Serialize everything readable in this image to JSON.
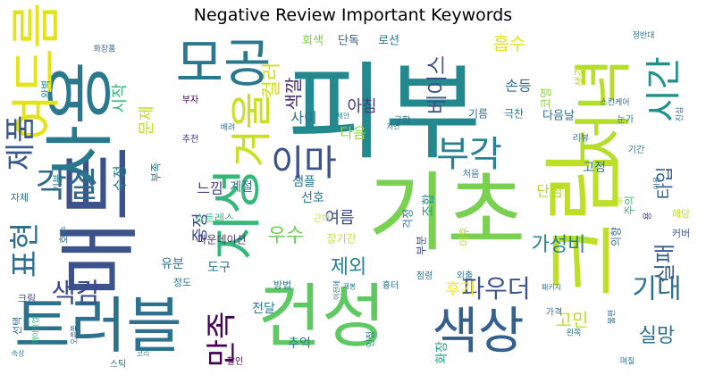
{
  "chart_data": {
    "type": "wordcloud",
    "title": "Negative Review Important Keywords",
    "xlabel": "",
    "ylabel": "",
    "colormap": "viridis",
    "background": "#ffffff",
    "words": [
      {
        "text": "피부",
        "weight": 100,
        "color": "#23898e"
      },
      {
        "text": "매트",
        "weight": 96,
        "color": "#3b528b"
      },
      {
        "text": "기초",
        "weight": 90,
        "color": "#7ad151"
      },
      {
        "text": "사용",
        "weight": 86,
        "color": "#2a788e"
      },
      {
        "text": "건성",
        "weight": 82,
        "color": "#5ec962"
      },
      {
        "text": "크림",
        "weight": 80,
        "color": "#bddf26"
      },
      {
        "text": "트러블",
        "weight": 74,
        "color": "#2c728e"
      },
      {
        "text": "저녁",
        "weight": 72,
        "color": "#b5de2b"
      },
      {
        "text": "지성",
        "weight": 62,
        "color": "#35b779"
      },
      {
        "text": "모공",
        "weight": 58,
        "color": "#2a788e"
      },
      {
        "text": "여드름",
        "weight": 56,
        "color": "#e3e418"
      },
      {
        "text": "색상",
        "weight": 58,
        "color": "#355f8d"
      },
      {
        "text": "겨울",
        "weight": 54,
        "color": "#c8e020"
      },
      {
        "text": "이마",
        "weight": 46,
        "color": "#3b528b"
      },
      {
        "text": "부각",
        "weight": 44,
        "color": "#26828e"
      },
      {
        "text": "각질",
        "weight": 44,
        "color": "#31688e"
      },
      {
        "text": "표현",
        "weight": 42,
        "color": "#2e6e8e"
      },
      {
        "text": "제품",
        "weight": 40,
        "color": "#38588c"
      },
      {
        "text": "시간",
        "weight": 40,
        "color": "#21918c"
      },
      {
        "text": "화장",
        "weight": 38,
        "color": "#1fa187"
      },
      {
        "text": "만족",
        "weight": 36,
        "color": "#440154"
      },
      {
        "text": "색감",
        "weight": 34,
        "color": "#3e4a89"
      },
      {
        "text": "기대",
        "weight": 32,
        "color": "#2c728e"
      },
      {
        "text": "파우더",
        "weight": 30,
        "color": "#3b528b"
      },
      {
        "text": "가성비",
        "weight": 26,
        "color": "#26828e"
      },
      {
        "text": "실패",
        "weight": 26,
        "color": "#355f8d"
      },
      {
        "text": "실망",
        "weight": 26,
        "color": "#2d708e"
      },
      {
        "text": "고민",
        "weight": 26,
        "color": "#bddf26"
      },
      {
        "text": "우수",
        "weight": 26,
        "color": "#6ece58"
      },
      {
        "text": "베이스",
        "weight": 24,
        "color": "#3b528b"
      },
      {
        "text": "컬러",
        "weight": 24,
        "color": "#d0e11c"
      },
      {
        "text": "아침",
        "weight": 22,
        "color": "#443983"
      },
      {
        "text": "색깔",
        "weight": 24,
        "color": "#472d7b"
      },
      {
        "text": "흡수",
        "weight": 22,
        "color": "#e5e419"
      },
      {
        "text": "타입",
        "weight": 22,
        "color": "#34618d"
      },
      {
        "text": "후기",
        "weight": 22,
        "color": "#fde725"
      },
      {
        "text": "제외",
        "weight": 22,
        "color": "#26828e"
      },
      {
        "text": "여름",
        "weight": 20,
        "color": "#3e4989"
      },
      {
        "text": "문제",
        "weight": 18,
        "color": "#bddf26"
      },
      {
        "text": "시작",
        "weight": 18,
        "color": "#35b779"
      },
      {
        "text": "이후",
        "weight": 18,
        "color": "#b5de2b"
      },
      {
        "text": "다음",
        "weight": 16,
        "color": "#8fd744"
      },
      {
        "text": "단점",
        "weight": 16,
        "color": "#addc30"
      },
      {
        "text": "손등",
        "weight": 16,
        "color": "#31688e"
      },
      {
        "text": "느낌",
        "weight": 16,
        "color": "#433e85"
      },
      {
        "text": "사이",
        "weight": 16,
        "color": "#2e6e8e"
      },
      {
        "text": "수정",
        "weight": 16,
        "color": "#26828e"
      },
      {
        "text": "중정",
        "weight": 16,
        "color": "#3e4a89"
      },
      {
        "text": "계절",
        "weight": 15,
        "color": "#2c728e"
      },
      {
        "text": "샘플",
        "weight": 15,
        "color": "#2a788e"
      },
      {
        "text": "선호",
        "weight": 15,
        "color": "#2a788e"
      },
      {
        "text": "유분",
        "weight": 14,
        "color": "#2c728e"
      },
      {
        "text": "도구",
        "weight": 14,
        "color": "#2a788e"
      },
      {
        "text": "고정",
        "weight": 14,
        "color": "#2c728e"
      },
      {
        "text": "조합",
        "weight": 14,
        "color": "#21918c"
      },
      {
        "text": "추억",
        "weight": 14,
        "color": "#2a788e"
      },
      {
        "text": "전달",
        "weight": 14,
        "color": "#2a788e"
      },
      {
        "text": "회색",
        "weight": 14,
        "color": "#7ad151"
      },
      {
        "text": "단독",
        "weight": 14,
        "color": "#38588c"
      },
      {
        "text": "로션",
        "weight": 14,
        "color": "#2a788e"
      },
      {
        "text": "코열",
        "weight": 13,
        "color": "#8fd744"
      },
      {
        "text": "생각",
        "weight": 13,
        "color": "#bddf26"
      },
      {
        "text": "다음날",
        "weight": 13,
        "color": "#31688e"
      },
      {
        "text": "극찬",
        "weight": 12,
        "color": "#2a788e"
      },
      {
        "text": "기름",
        "weight": 12,
        "color": "#2c728e"
      },
      {
        "text": "부족",
        "weight": 12,
        "color": "#2a788e"
      },
      {
        "text": "스트레스",
        "weight": 12,
        "color": "#35b779"
      },
      {
        "text": "파운데이션",
        "weight": 12,
        "color": "#46327e"
      },
      {
        "text": "장기간",
        "weight": 12,
        "color": "#bddf26"
      },
      {
        "text": "걱정",
        "weight": 12,
        "color": "#2c728e"
      },
      {
        "text": "부분",
        "weight": 12,
        "color": "#3e4989"
      },
      {
        "text": "의향",
        "weight": 12,
        "color": "#31688e"
      },
      {
        "text": "주의",
        "weight": 12,
        "color": "#35b779"
      },
      {
        "text": "해당",
        "weight": 11,
        "color": "#bddf26"
      },
      {
        "text": "커버",
        "weight": 11,
        "color": "#3b528b"
      },
      {
        "text": "용",
        "weight": 11,
        "color": "#443983"
      },
      {
        "text": "방법",
        "weight": 11,
        "color": "#2a788e"
      },
      {
        "text": "정도",
        "weight": 11,
        "color": "#2c728e"
      },
      {
        "text": "크림",
        "weight": 11,
        "color": "#3b528b"
      },
      {
        "text": "선택",
        "weight": 11,
        "color": "#31688e"
      },
      {
        "text": "자체",
        "weight": 11,
        "color": "#2c728e"
      },
      {
        "text": "기분",
        "weight": 11,
        "color": "#2a788e"
      },
      {
        "text": "완벽",
        "weight": 11,
        "color": "#21918c"
      },
      {
        "text": "호수",
        "weight": 11,
        "color": "#2c728e"
      },
      {
        "text": "가격",
        "weight": 10,
        "color": "#2c728e"
      },
      {
        "text": "인정",
        "weight": 10,
        "color": "#2a788e"
      },
      {
        "text": "점령",
        "weight": 10,
        "color": "#2c728e"
      },
      {
        "text": "외출",
        "weight": 10,
        "color": "#2c728e"
      },
      {
        "text": "흉터",
        "weight": 10,
        "color": "#2c728e"
      },
      {
        "text": "할인",
        "weight": 10,
        "color": "#440154"
      },
      {
        "text": "스틱",
        "weight": 10,
        "color": "#2a788e"
      },
      {
        "text": "근대",
        "weight": 10,
        "color": "#bddf26"
      },
      {
        "text": "처음",
        "weight": 10,
        "color": "#2c728e"
      },
      {
        "text": "궁합",
        "weight": 10,
        "color": "#2c728e"
      },
      {
        "text": "리뷰",
        "weight": 10,
        "color": "#31688e"
      },
      {
        "text": "눈가",
        "weight": 10,
        "color": "#2a788e"
      },
      {
        "text": "기간",
        "weight": 10,
        "color": "#2c728e"
      },
      {
        "text": "부자",
        "weight": 10,
        "color": "#440154"
      },
      {
        "text": "추천",
        "weight": 10,
        "color": "#443983"
      },
      {
        "text": "정반대",
        "weight": 9,
        "color": "#2c728e"
      },
      {
        "text": "화장품",
        "weight": 9,
        "color": "#31688e"
      },
      {
        "text": "스킨케어",
        "weight": 9,
        "color": "#31688e"
      },
      {
        "text": "진심",
        "weight": 9,
        "color": "#2c728e"
      },
      {
        "text": "배려",
        "weight": 9,
        "color": "#2c728e"
      },
      {
        "text": "세안",
        "weight": 8,
        "color": "#21918c"
      },
      {
        "text": "자연",
        "weight": 8,
        "color": "#2c728e"
      },
      {
        "text": "속상",
        "weight": 8,
        "color": "#2a788e"
      },
      {
        "text": "개봉",
        "weight": 8,
        "color": "#2a788e"
      },
      {
        "text": "이전제",
        "weight": 8,
        "color": "#2c728e"
      },
      {
        "text": "오른쪽",
        "weight": 8,
        "color": "#31688e"
      },
      {
        "text": "메이크업",
        "weight": 8,
        "color": "#35b779"
      },
      {
        "text": "코리",
        "weight": 8,
        "color": "#2a788e"
      },
      {
        "text": "패키지",
        "weight": 8,
        "color": "#31688e"
      },
      {
        "text": "불편",
        "weight": 8,
        "color": "#2c728e"
      },
      {
        "text": "며칠",
        "weight": 8,
        "color": "#2c728e"
      },
      {
        "text": "왼쪽",
        "weight": 8,
        "color": "#2a788e"
      },
      {
        "text": "가을",
        "weight": 8,
        "color": "#bddf26"
      },
      {
        "text": "이용",
        "weight": 8,
        "color": "#2c728e"
      }
    ]
  }
}
